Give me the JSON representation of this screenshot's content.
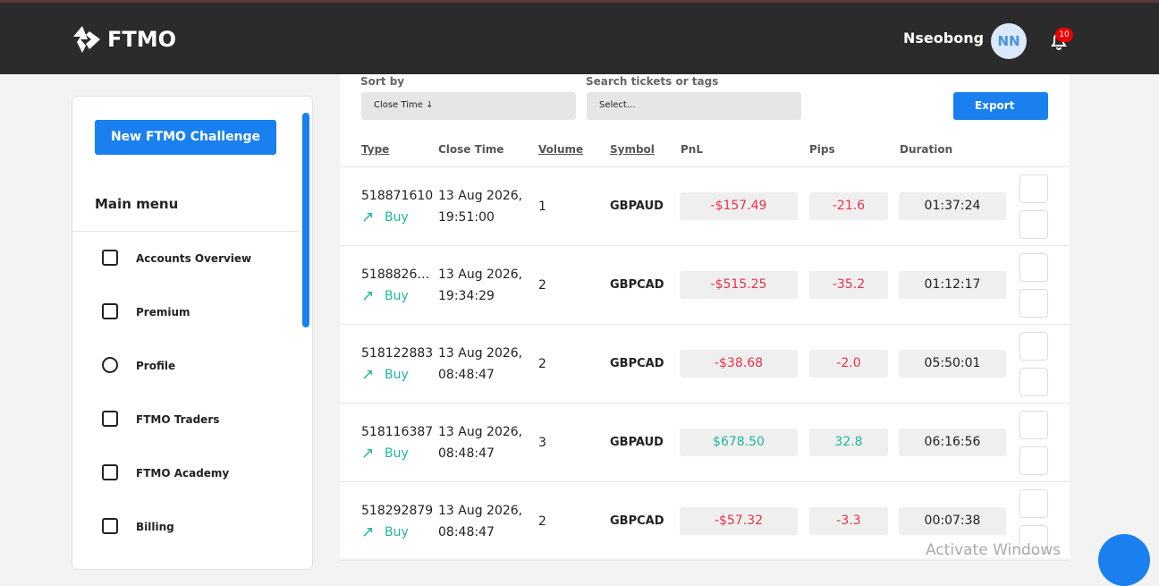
{
  "header": {
    "logo": "FTMO",
    "user": "Nseobong",
    "avatar": "NN",
    "notifications": "10"
  },
  "sidebar": {
    "button": "New FTMO Challenge",
    "heading": "Main menu",
    "items": [
      "Accounts Overview",
      "Premium",
      "Profile",
      "FTMO Traders",
      "FTMO Academy",
      "Billing"
    ]
  },
  "filters": {
    "sort_label": "Sort by",
    "sort_value": "Close Time ↓",
    "search_label": "Search tickets or tags",
    "search_placeholder": "Select...",
    "export": "Export"
  },
  "table": {
    "columns": [
      "Type",
      "Close Time",
      "Volume",
      "Symbol",
      "PnL",
      "Pips",
      "Duration"
    ],
    "rows": [
      {
        "ticket": "518871610",
        "direction": "Buy",
        "date": "13 Aug 2026,",
        "time": "19:51:00",
        "volume": "1",
        "symbol": "GBPAUD",
        "pnl": "-$157.49",
        "pips": "-21.6",
        "duration": "01:37:24"
      },
      {
        "ticket": "5188826…",
        "direction": "Buy",
        "date": "13 Aug 2026,",
        "time": "19:34:29",
        "volume": "2",
        "symbol": "GBPCAD",
        "pnl": "-$515.25",
        "pips": "-35.2",
        "duration": "01:12:17"
      },
      {
        "ticket": "518122883",
        "direction": "Buy",
        "date": "13 Aug 2026,",
        "time": "08:48:47",
        "volume": "2",
        "symbol": "GBPCAD",
        "pnl": "-$38.68",
        "pips": "-2.0",
        "duration": "05:50:01"
      },
      {
        "ticket": "518116387",
        "direction": "Buy",
        "date": "13 Aug 2026,",
        "time": "08:48:47",
        "volume": "3",
        "symbol": "GBPAUD",
        "pnl": "$678.50",
        "pips": "32.8",
        "duration": "06:16:56"
      },
      {
        "ticket": "518292879",
        "direction": "Buy",
        "date": "13 Aug 2026,",
        "time": "08:48:47",
        "volume": "2",
        "symbol": "GBPCAD",
        "pnl": "-$57.32",
        "pips": "-3.3",
        "duration": "00:07:38"
      }
    ]
  },
  "watermark": "Activate Windows"
}
